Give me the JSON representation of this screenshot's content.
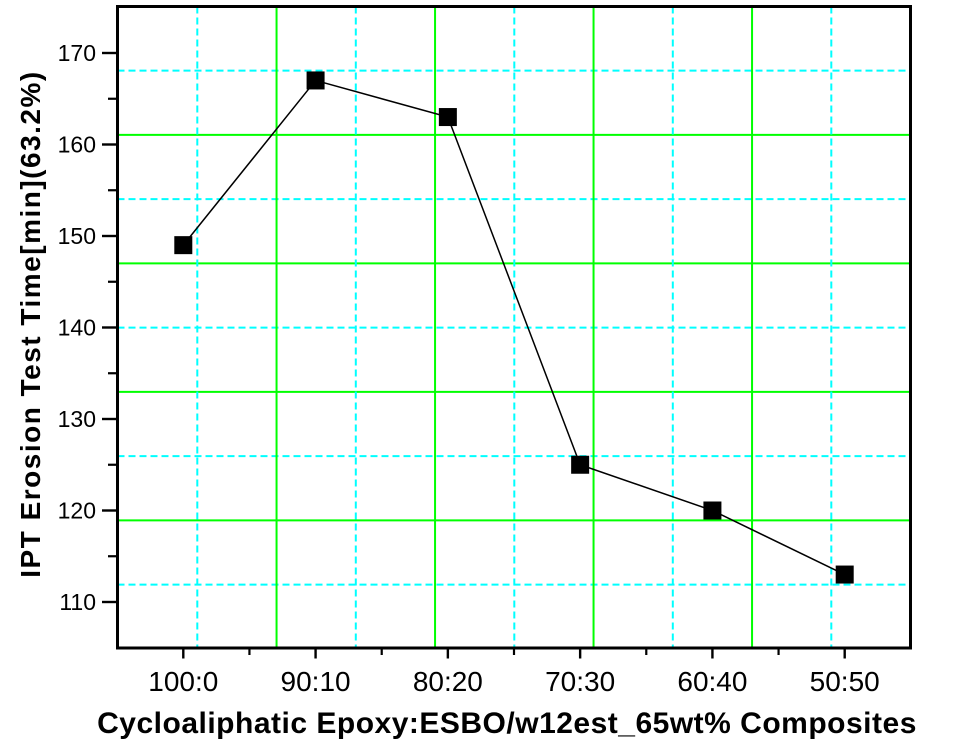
{
  "chart_data": {
    "type": "line",
    "title": "",
    "xlabel": "Cycloaliphatic Epoxy:ESBO/w12est_65wt% Composites",
    "ylabel": "IPT Erosion Test Time[min](63.2%)",
    "categories": [
      "100:0",
      "90:10",
      "80:20",
      "70:30",
      "60:40",
      "50:50"
    ],
    "values": [
      149,
      167,
      163,
      125,
      120,
      113
    ],
    "yticks_major": [
      170,
      160,
      150,
      140,
      130,
      120,
      110
    ],
    "yticks_minor": [
      165,
      155,
      145,
      135,
      125,
      115
    ],
    "ylim": [
      105,
      175.3
    ],
    "x_minor_ticks_between_categories": true,
    "legend": "none",
    "grid": {
      "show": true,
      "pattern": "alternating minor-major lines not aligned to ticks",
      "major_style": "solid",
      "minor_style": "dashed"
    },
    "marker": {
      "shape": "square",
      "size": 18
    },
    "line_width": 1.5,
    "colors": {
      "grid_major": "#00FF00",
      "grid_minor": "#00FFFF",
      "axis": "#000000",
      "series": "#000000",
      "marker": "#000000",
      "text": "#000000",
      "background": "#FFFFFF"
    }
  }
}
